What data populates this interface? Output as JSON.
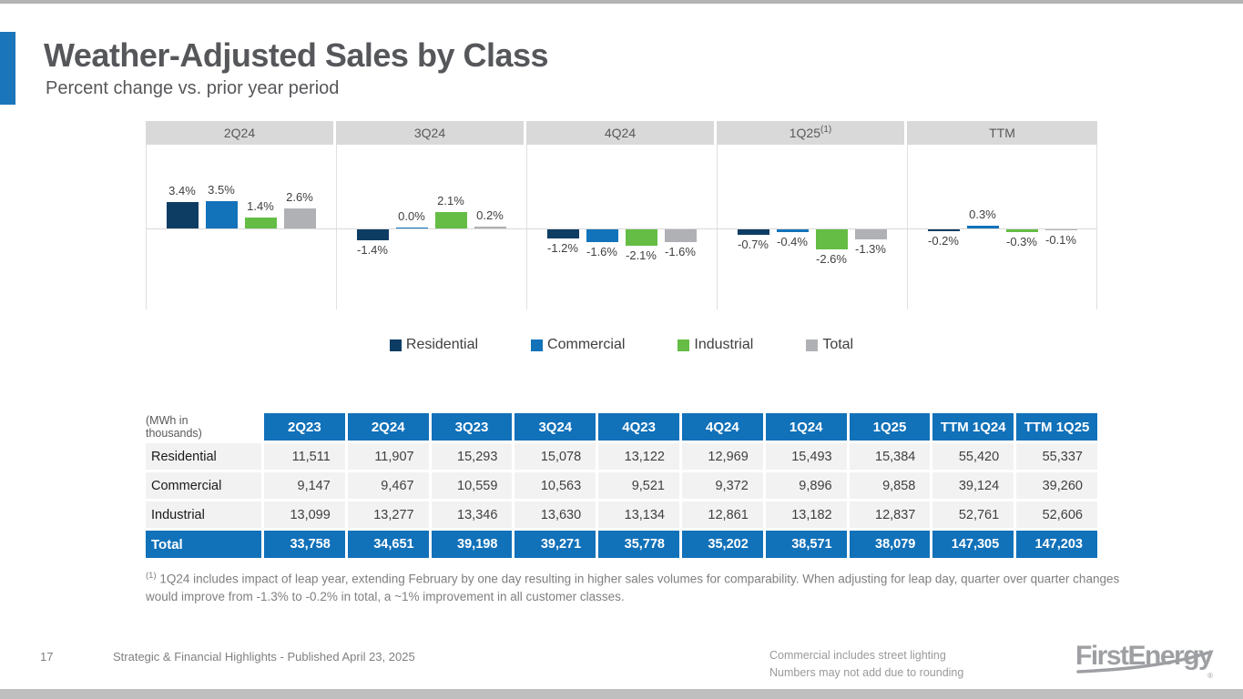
{
  "slide": {
    "title": "Weather-Adjusted Sales by Class",
    "subtitle": "Percent change vs. prior year period",
    "page_number": "17",
    "footer_left": "Strategic & Financial Highlights - Published April 23, 2025",
    "footer_note_1": "Commercial includes street lighting",
    "footer_note_2": "Numbers may not add due to rounding",
    "logo_text": "FirstEnergy",
    "footnote_marker": "(1)",
    "footnote_text": "1Q24 includes impact of leap year, extending February by one day resulting in higher sales volumes for comparability.  When adjusting for leap day, quarter over quarter changes would improve from -1.3% to -0.2% in total, a ~1% improvement in all customer classes."
  },
  "colors": {
    "residential": "#0e3d64",
    "commercial": "#1373ba",
    "industrial": "#65bd45",
    "total": "#afb1b4",
    "table_header_blue": "#1171b9",
    "accent_blue": "#1b75bb",
    "panel_header_gray": "#d9d9d9"
  },
  "chart_data": {
    "type": "bar",
    "title": "Weather-Adjusted Sales by Class",
    "subtitle": "Percent change vs. prior year period",
    "value_format": "percent_one_decimal",
    "grid": false,
    "legend_position": "bottom",
    "groups": [
      {
        "label": "2Q24",
        "sup": ""
      },
      {
        "label": "3Q24",
        "sup": ""
      },
      {
        "label": "4Q24",
        "sup": ""
      },
      {
        "label": "1Q25",
        "sup": "(1)"
      },
      {
        "label": "TTM",
        "sup": ""
      }
    ],
    "series": [
      {
        "name": "Residential",
        "color": "#0e3d64",
        "values": [
          3.4,
          -1.4,
          -1.2,
          -0.7,
          -0.2
        ]
      },
      {
        "name": "Commercial",
        "color": "#1373ba",
        "values": [
          3.5,
          0.0,
          -1.6,
          -0.4,
          0.3
        ]
      },
      {
        "name": "Industrial",
        "color": "#65bd45",
        "values": [
          1.4,
          2.1,
          -2.1,
          -2.6,
          -0.3
        ]
      },
      {
        "name": "Total",
        "color": "#afb1b4",
        "values": [
          2.6,
          0.2,
          -1.6,
          -1.3,
          -0.1
        ]
      }
    ]
  },
  "table": {
    "unit_label_line1": "(MWh in",
    "unit_label_line2": "thousands)",
    "columns": [
      "2Q23",
      "2Q24",
      "3Q23",
      "3Q24",
      "4Q23",
      "4Q24",
      "1Q24",
      "1Q25",
      "TTM 1Q24",
      "TTM 1Q25"
    ],
    "rows": [
      {
        "label": "Residential",
        "values": [
          "11,511",
          "11,907",
          "15,293",
          "15,078",
          "13,122",
          "12,969",
          "15,493",
          "15,384",
          "55,420",
          "55,337"
        ]
      },
      {
        "label": "Commercial",
        "values": [
          "9,147",
          "9,467",
          "10,559",
          "10,563",
          "9,521",
          "9,372",
          "9,896",
          "9,858",
          "39,124",
          "39,260"
        ]
      },
      {
        "label": "Industrial",
        "values": [
          "13,099",
          "13,277",
          "13,346",
          "13,630",
          "13,134",
          "12,861",
          "13,182",
          "12,837",
          "52,761",
          "52,606"
        ]
      }
    ],
    "total_row": {
      "label": "Total",
      "values": [
        "33,758",
        "34,651",
        "39,198",
        "39,271",
        "35,778",
        "35,202",
        "38,571",
        "38,079",
        "147,305",
        "147,203"
      ]
    }
  }
}
